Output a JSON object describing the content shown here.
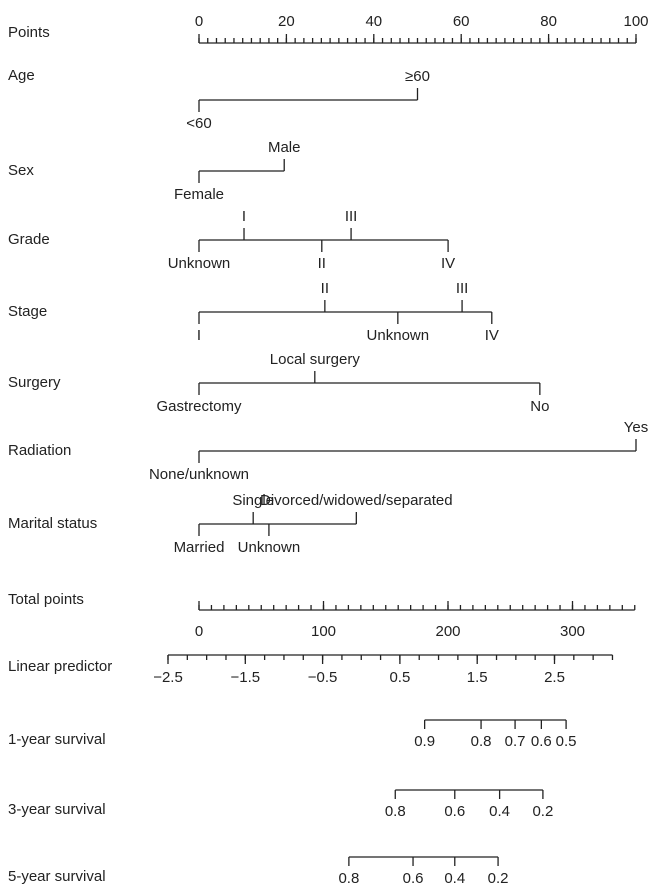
{
  "chart_data": {
    "type": "nomogram",
    "points": {
      "name": "Points",
      "xlim": [
        0,
        100
      ],
      "xticks": [
        0,
        20,
        40,
        60,
        80,
        100
      ],
      "minor_step": 2
    },
    "rows": [
      {
        "name": "Age",
        "levels": [
          "<60",
          "≥60"
        ],
        "values": [
          0,
          50
        ]
      },
      {
        "name": "Sex",
        "levels": [
          "Female",
          "Male"
        ],
        "values": [
          0,
          19.5
        ]
      },
      {
        "name": "Grade",
        "levels": [
          "Unknown",
          "I",
          "II",
          "III",
          "IV"
        ],
        "values": [
          0,
          10.3,
          28.1,
          34.8,
          57
        ]
      },
      {
        "name": "Stage",
        "levels": [
          "I",
          "II",
          "Unknown",
          "III",
          "IV"
        ],
        "values": [
          0,
          28.8,
          45.5,
          60.2,
          67
        ]
      },
      {
        "name": "Surgery",
        "levels": [
          "Gastrectomy",
          "Local surgery",
          "No"
        ],
        "values": [
          0,
          26.5,
          78
        ]
      },
      {
        "name": "Radiation",
        "levels": [
          "None/unknown",
          "Yes"
        ],
        "values": [
          0,
          100
        ]
      },
      {
        "name": "Marital status",
        "levels": [
          "Married",
          "Single",
          "Unknown",
          "Divorced/widowed/separated"
        ],
        "values": [
          0,
          12.4,
          16,
          36
        ]
      }
    ],
    "total": {
      "name": "Total points",
      "xlim": [
        0,
        350
      ],
      "xticks": [
        0,
        100,
        200,
        300
      ],
      "minor_step": 10
    },
    "predictor": {
      "name": "Linear predictor",
      "xlim": [
        -2.5,
        3.25
      ],
      "xticks": [
        {
          "value": -2.5,
          "label": "−2.5"
        },
        {
          "value": -1.5,
          "label": "−1.5"
        },
        {
          "value": -0.5,
          "label": "−0.5"
        },
        0.5,
        1.5,
        2.5
      ],
      "minor_step": 0.25
    },
    "survival": [
      {
        "name": "1-year survival",
        "values": [
          0.9,
          0.8,
          0.7,
          0.6,
          0.5
        ],
        "x": [
          0.82,
          1.55,
          1.99,
          2.33,
          2.65
        ]
      },
      {
        "name": "3-year survival",
        "values": [
          0.8,
          0.6,
          0.4,
          0.2
        ],
        "x": [
          0.44,
          1.21,
          1.79,
          2.35
        ]
      },
      {
        "name": "5-year survival",
        "values": [
          0.8,
          0.6,
          0.4,
          0.2
        ],
        "x": [
          -0.16,
          0.67,
          1.21,
          1.77
        ]
      }
    ]
  }
}
